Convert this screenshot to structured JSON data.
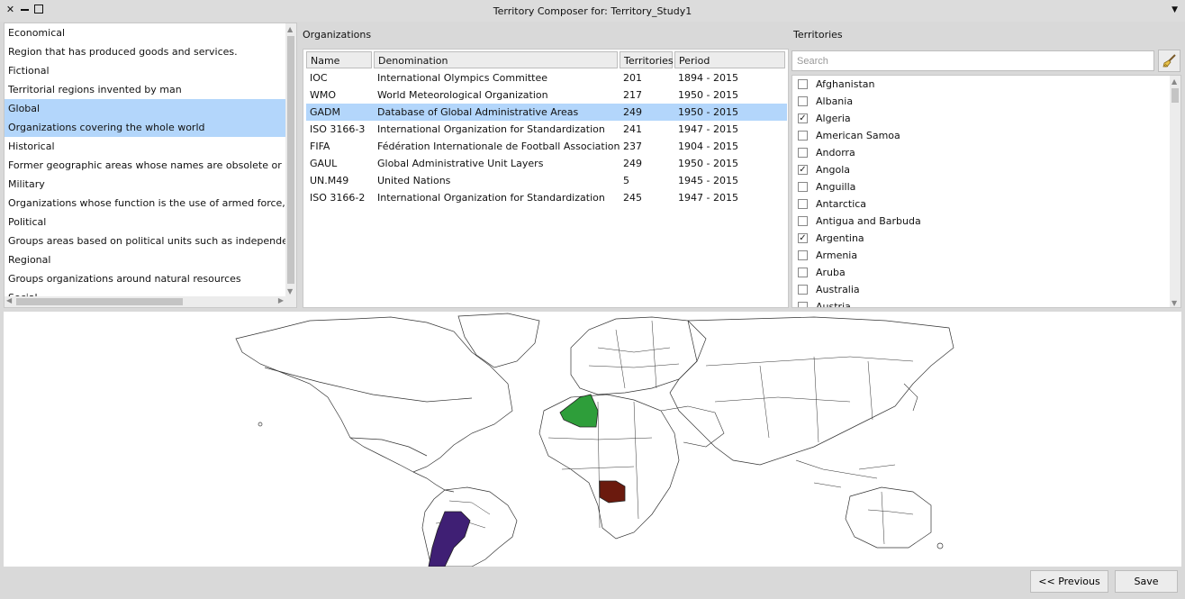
{
  "window": {
    "title": "Territory Composer for: Territory_Study1"
  },
  "categories": [
    {
      "label": "Economical",
      "selected": false
    },
    {
      "label": "Region that has produced goods and services.",
      "selected": false
    },
    {
      "label": "Fictional",
      "selected": false
    },
    {
      "label": "Territorial regions invented by man",
      "selected": false
    },
    {
      "label": "Global",
      "selected": true
    },
    {
      "label": "Organizations covering the whole world",
      "selected": true
    },
    {
      "label": "Historical",
      "selected": false
    },
    {
      "label": "Former geographic areas whose names are obsolete or have fallen out of use",
      "selected": false
    },
    {
      "label": "Military",
      "selected": false
    },
    {
      "label": "Organizations whose function is the use of armed force, or the threat of it",
      "selected": false
    },
    {
      "label": "Political",
      "selected": false
    },
    {
      "label": "Groups areas based on political units such as independent states",
      "selected": false
    },
    {
      "label": "Regional",
      "selected": false
    },
    {
      "label": "Groups organizations around natural resources",
      "selected": false
    },
    {
      "label": "Social",
      "selected": false
    }
  ],
  "organizations": {
    "label": "Organizations",
    "columns": [
      "Name",
      "Denomination",
      "Territories",
      "Period"
    ],
    "rows": [
      {
        "name": "IOC",
        "denomination": "International Olympics Committee",
        "territories": "201",
        "period": "1894 - 2015",
        "selected": false
      },
      {
        "name": "WMO",
        "denomination": "World Meteorological Organization",
        "territories": "217",
        "period": "1950 - 2015",
        "selected": false
      },
      {
        "name": "GADM",
        "denomination": "Database of Global Administrative Areas",
        "territories": "249",
        "period": "1950 - 2015",
        "selected": true
      },
      {
        "name": "ISO 3166-3",
        "denomination": "International Organization for Standardization",
        "territories": "241",
        "period": "1947 - 2015",
        "selected": false
      },
      {
        "name": "FIFA",
        "denomination": "Fédération Internationale de Football Association",
        "territories": "237",
        "period": "1904 - 2015",
        "selected": false
      },
      {
        "name": "GAUL",
        "denomination": "Global Administrative Unit Layers",
        "territories": "249",
        "period": "1950 - 2015",
        "selected": false
      },
      {
        "name": "UN.M49",
        "denomination": "United Nations",
        "territories": "5",
        "period": "1945 - 2015",
        "selected": false
      },
      {
        "name": "ISO 3166-2",
        "denomination": "International Organization for Standardization",
        "territories": "245",
        "period": "1947 - 2015",
        "selected": false
      }
    ]
  },
  "territories": {
    "label": "Territories",
    "search_placeholder": "Search",
    "items": [
      {
        "label": "Afghanistan",
        "checked": false
      },
      {
        "label": "Albania",
        "checked": false
      },
      {
        "label": "Algeria",
        "checked": true
      },
      {
        "label": "American Samoa",
        "checked": false
      },
      {
        "label": "Andorra",
        "checked": false
      },
      {
        "label": "Angola",
        "checked": true
      },
      {
        "label": "Anguilla",
        "checked": false
      },
      {
        "label": "Antarctica",
        "checked": false
      },
      {
        "label": "Antigua and Barbuda",
        "checked": false
      },
      {
        "label": "Argentina",
        "checked": true
      },
      {
        "label": "Armenia",
        "checked": false
      },
      {
        "label": "Aruba",
        "checked": false
      },
      {
        "label": "Australia",
        "checked": false
      },
      {
        "label": "Austria",
        "checked": false
      }
    ]
  },
  "map": {
    "highlight_colors": {
      "Algeria": "#2e9e3a",
      "Angola": "#6b1a0e",
      "Argentina": "#3f1f74"
    }
  },
  "buttons": {
    "previous": "<< Previous",
    "save": "Save"
  }
}
